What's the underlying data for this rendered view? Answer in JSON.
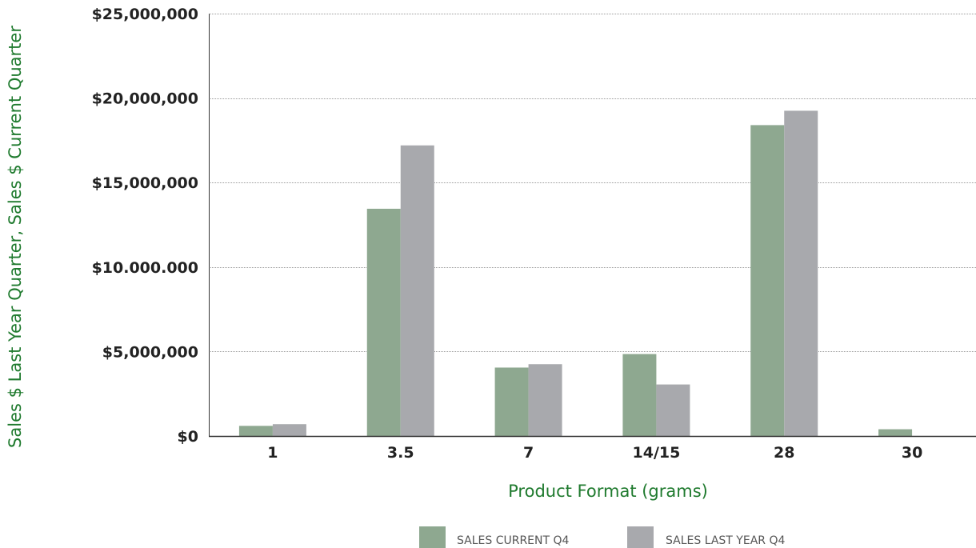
{
  "chart_data": {
    "type": "bar",
    "title": "",
    "xlabel": "Product Format (grams)",
    "ylabel": "Sales $ Last Year Quarter, Sales $ Current Quarter",
    "categories": [
      "1",
      "3.5",
      "7",
      "14/15",
      "28",
      "30"
    ],
    "series": [
      {
        "name": "SALES CURRENT Q4",
        "color": "#8ea890",
        "values": [
          600000,
          13450000,
          4050000,
          4850000,
          18400000,
          400000
        ]
      },
      {
        "name": "SALES LAST YEAR Q4",
        "color": "#a8a9ad",
        "values": [
          700000,
          17200000,
          4250000,
          3050000,
          19250000,
          0
        ]
      }
    ],
    "ylim": [
      0,
      25000000
    ],
    "yticks": [
      0,
      5000000,
      10000000,
      15000000,
      20000000,
      25000000
    ],
    "ytick_labels": [
      "$0",
      "$5,000,000",
      "$10.000.000",
      "$15,000,000",
      "$20,000,000",
      "$25,000,000"
    ],
    "grid": true,
    "legend_position": "bottom-center",
    "colors": {
      "axis_title": "#1f7a2e",
      "grid": "#9a9a9a",
      "axis": "#333333"
    }
  }
}
